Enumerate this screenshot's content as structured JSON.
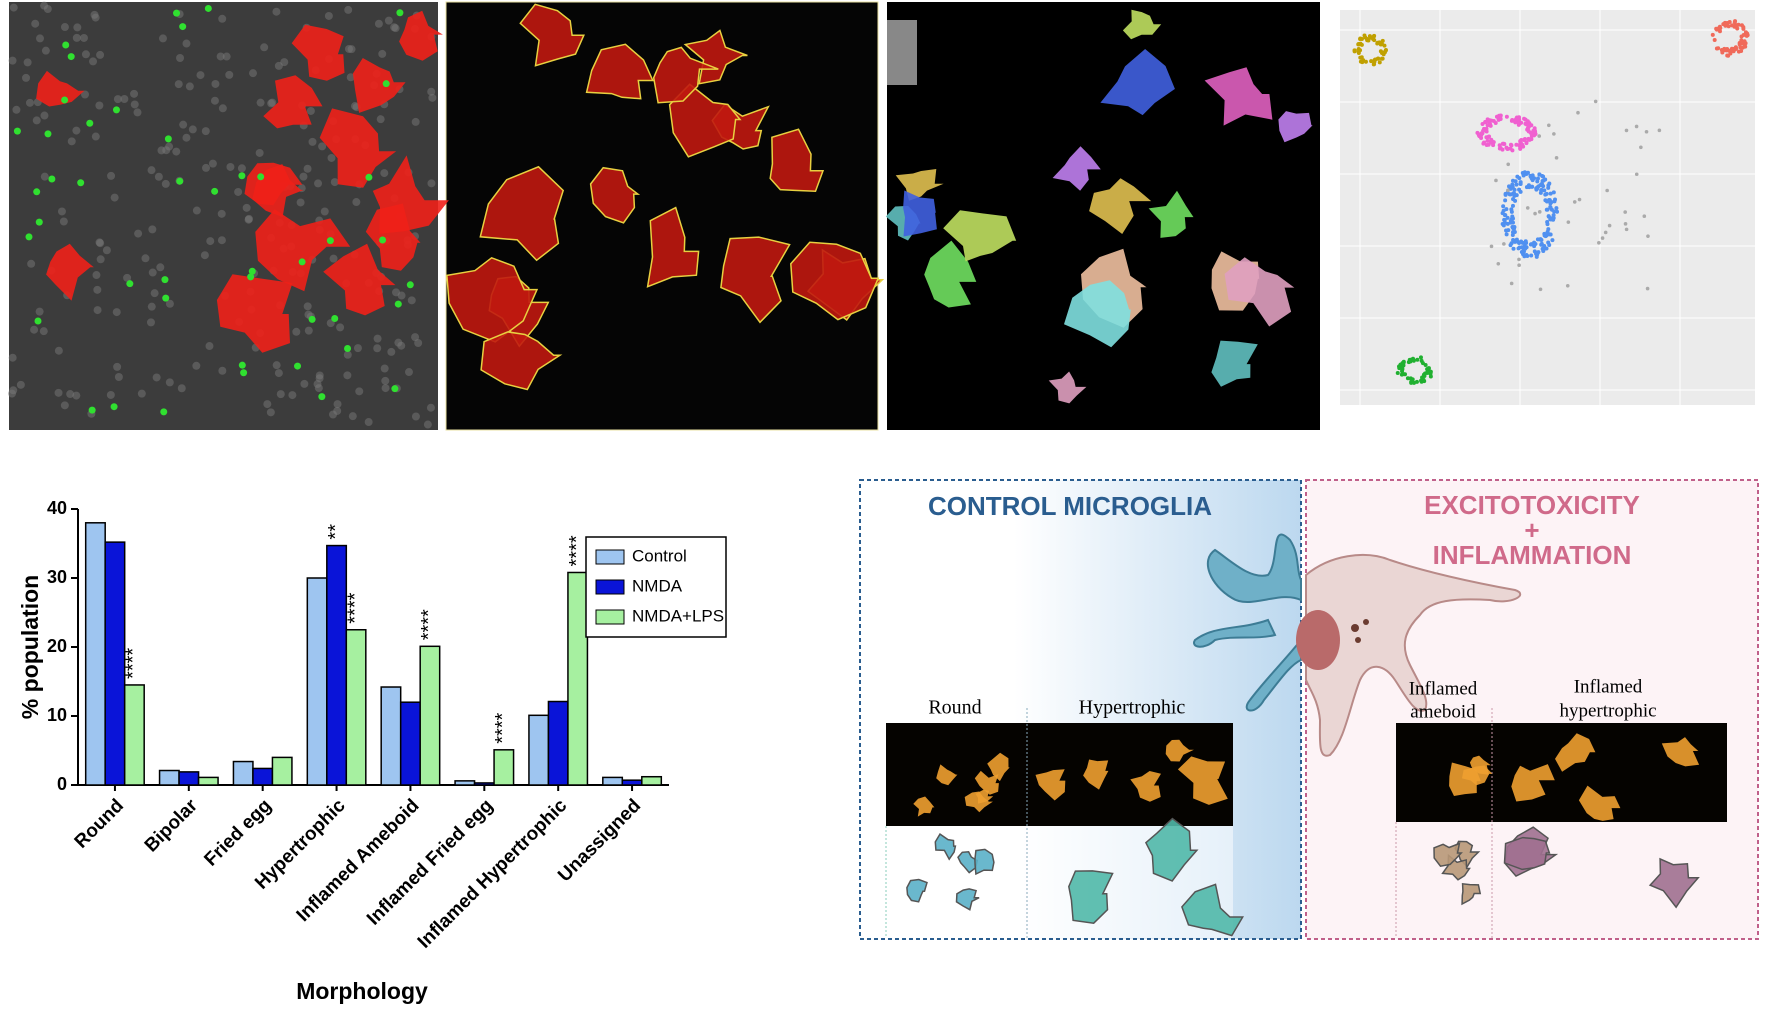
{
  "chart_data": {
    "type": "bar",
    "y_label": "% population",
    "x_label": "Morphology",
    "categories": [
      "Round",
      "Bipolar",
      "Fried egg",
      "Hypertrophic",
      "Inflamed Ameboid",
      "Inflamed Fried egg",
      "Inflamed Hypertrophic",
      "Unassigned"
    ],
    "series": [
      {
        "name": "Control",
        "color": "#9ec5f0",
        "values": [
          38,
          2.1,
          3.4,
          30,
          14.2,
          0.6,
          10.1,
          1.1
        ]
      },
      {
        "name": "NMDA",
        "color": "#0a14d8",
        "values": [
          35.2,
          1.9,
          2.4,
          34.7,
          12,
          0.3,
          12.1,
          0.7
        ]
      },
      {
        "name": "NMDA+LPS",
        "color": "#a6f0a0",
        "values": [
          14.5,
          1.1,
          4.0,
          22.5,
          20.1,
          5.1,
          30.8,
          1.2
        ]
      }
    ],
    "annotations": [
      {
        "text": "****",
        "category": "Round",
        "series": "NMDA+LPS"
      },
      {
        "text": "**",
        "category": "Hypertrophic",
        "series": "NMDA"
      },
      {
        "text": "****",
        "category": "Hypertrophic",
        "series": "NMDA+LPS"
      },
      {
        "text": "****",
        "category": "Inflamed Ameboid",
        "series": "NMDA+LPS"
      },
      {
        "text": "****",
        "category": "Inflamed Fried egg",
        "series": "NMDA+LPS"
      },
      {
        "text": "****",
        "category": "Inflamed Hypertrophic",
        "series": "NMDA+LPS"
      }
    ],
    "ylim": [
      0,
      40
    ],
    "yticks": [
      0,
      10,
      20,
      30,
      40
    ],
    "legend": "upper right",
    "grid": false
  },
  "diagram": {
    "control_title": "CONTROL MICROGLIA",
    "excito_title": [
      "EXCITOTOXICITY",
      "+",
      "INFLAMMATION"
    ],
    "control_labels": [
      "Round",
      "Hypertrophic"
    ],
    "excito_labels": [
      [
        "Inflamed",
        "ameboid"
      ],
      [
        "Inflamed",
        "hypertrophic"
      ]
    ]
  }
}
